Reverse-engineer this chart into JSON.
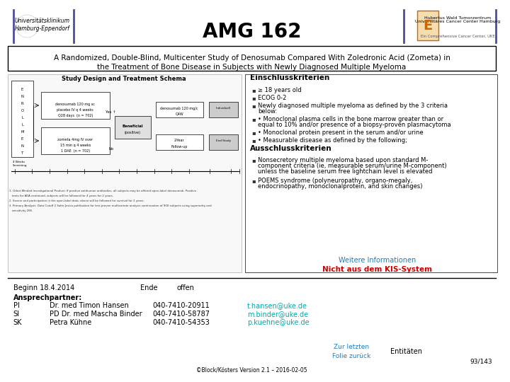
{
  "title": "AMG 162",
  "subtitle_line1": "A Randomized, Double-Blind, Multicenter Study of Denosumab Compared With Zoledronic Acid (Zometa) in",
  "subtitle_line2": "the Treatment of Bone Disease in Subjects with Newly Diagnosed Multiple Myeloma",
  "section_einschluss": "Einschlusskriterien",
  "einschluss_bullets": [
    "≥ 18 years old",
    "ECOG 0-2",
    "Newly diagnosed multiple myeloma as defined by the 3 criteria\nbelow:",
    "• Monoclonal plasma cells in the bone marrow greater than or\nequal to 10% and/or presence of a biopsy-proven plasmacytoma",
    "• Monoclonal protein present in the serum and/or urine",
    "• Measurable disease as defined by the following;"
  ],
  "section_ausschluss": "Ausschlusskriterien",
  "ausschluss_bullets": [
    "Nonsecretory multiple myeloma based upon standard M-\ncomponent criteria (ie, measurable serum/urine M-component)\nunless the baseline serum free lightchain level is elevated",
    "POEMS syndrome (polyneuropathy, organo-megaly,\nendocrinopathy, monoclonalprotein, and skin changes)"
  ],
  "weitere_info": "Weitere Informationen",
  "nicht_aus": "Nicht aus dem KIS-System",
  "beginn_label": "Beginn 18.4.2014",
  "ende_label": "Ende",
  "ende_value": "offen",
  "ansprechpartner": "Ansprechpartner:",
  "contacts": [
    [
      "PI",
      "Dr. med Timon Hansen",
      "040-7410-20911",
      "t.hansen@uke.de"
    ],
    [
      "SI",
      "PD Dr. med Mascha Binder",
      "040-7410-58787",
      "m.binder@uke.de"
    ],
    [
      "SK",
      "Petra Kühne",
      "040-7410-54353",
      "p.kuehne@uke.de"
    ]
  ],
  "footer_left": "©Block/Kösters Version 2.1 – 2016-02-05",
  "footer_right": "93/143",
  "zur_letzten": "Zur letzten\nFolie zurück",
  "entitaeten": "Entitäten",
  "study_design_title": "Study Design and Treatment Schema",
  "bg_color": "#ffffff",
  "title_color": "#000000",
  "subtitle_color": "#000000",
  "section_header_color": "#000000",
  "weitere_info_color": "#1f7bc1",
  "nicht_aus_color": "#cc0000",
  "beginn_color": "#000000",
  "contact_link_color": "#00aaaa",
  "zur_letzten_color": "#1f7bc1",
  "footer_color": "#000000",
  "separator_color": "#000000"
}
